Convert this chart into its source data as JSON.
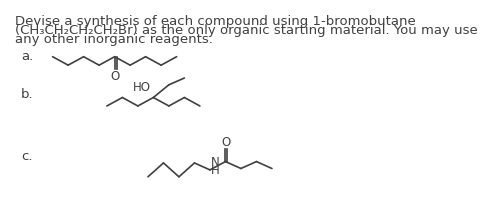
{
  "background_color": "#ffffff",
  "text_line1": "Devise a synthesis of each compound using 1-bromobutane",
  "text_line2": "(CH₃CH₂CH₂CH₂Br) as the only organic starting material. You may use",
  "text_line3": "any other inorganic reagents.",
  "label_a": "a.",
  "label_b": "b.",
  "label_c": "c.",
  "font_size_text": 9.5,
  "font_size_label": 9.5,
  "font_size_atom": 8.5,
  "line_color": "#404040",
  "line_width": 1.2
}
